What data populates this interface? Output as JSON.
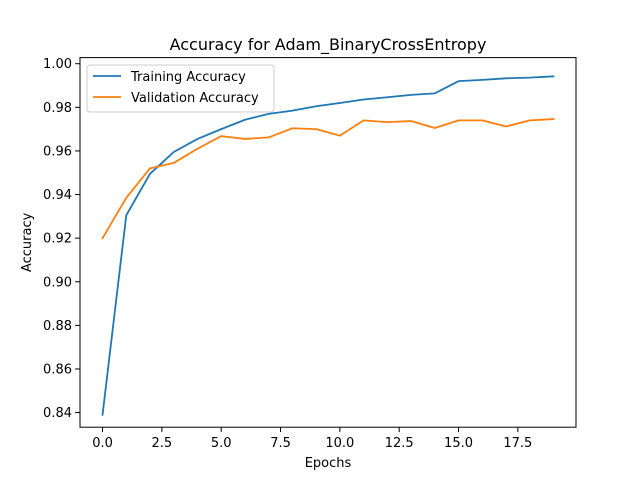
{
  "chart_data": {
    "type": "line",
    "title": "Accuracy for Adam_BinaryCrossEntropy",
    "xlabel": "Epochs",
    "ylabel": "Accuracy",
    "xlim": [
      -0.95,
      19.95
    ],
    "ylim": [
      0.8333,
      1.0028
    ],
    "xticks": [
      0.0,
      2.5,
      5.0,
      7.5,
      10.0,
      12.5,
      15.0,
      17.5
    ],
    "xtick_labels": [
      "0.0",
      "2.5",
      "5.0",
      "7.5",
      "10.0",
      "12.5",
      "15.0",
      "17.5"
    ],
    "yticks": [
      0.84,
      0.86,
      0.88,
      0.9,
      0.92,
      0.94,
      0.96,
      0.98,
      1.0
    ],
    "ytick_labels": [
      "0.84",
      "0.86",
      "0.88",
      "0.90",
      "0.92",
      "0.94",
      "0.96",
      "0.98",
      "1.00"
    ],
    "grid": false,
    "legend_position": "top-left",
    "x": [
      0,
      1,
      2,
      3,
      4,
      5,
      6,
      7,
      8,
      9,
      10,
      11,
      12,
      13,
      14,
      15,
      16,
      17,
      18,
      19
    ],
    "series": [
      {
        "name": "Training Accuracy",
        "color": "#1f77b4",
        "values": [
          0.839,
          0.9305,
          0.9495,
          0.9595,
          0.9655,
          0.97,
          0.9743,
          0.977,
          0.9785,
          0.9805,
          0.982,
          0.9836,
          0.9846,
          0.9857,
          0.9864,
          0.992,
          0.9926,
          0.9933,
          0.9936,
          0.9942
        ]
      },
      {
        "name": "Validation Accuracy",
        "color": "#ff7f0e",
        "values": [
          0.92,
          0.9385,
          0.952,
          0.9545,
          0.961,
          0.9668,
          0.9655,
          0.9662,
          0.9704,
          0.97,
          0.967,
          0.974,
          0.9732,
          0.9737,
          0.9705,
          0.974,
          0.974,
          0.9712,
          0.974,
          0.9746
        ]
      }
    ]
  }
}
